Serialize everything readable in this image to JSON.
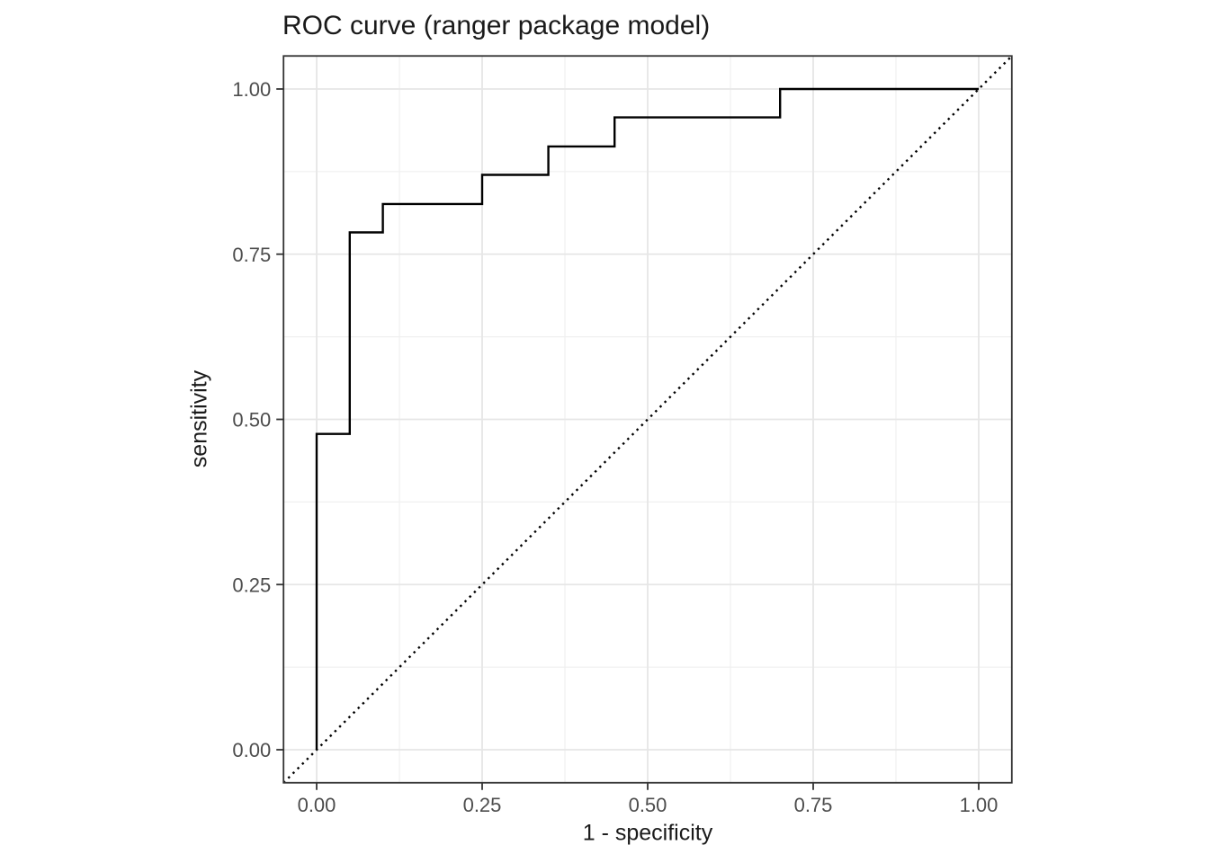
{
  "chart_data": {
    "type": "line",
    "title": "ROC curve (ranger package model)",
    "xlabel": "1 - specificity",
    "ylabel": "sensitivity",
    "xlim": [
      -0.05,
      1.05
    ],
    "ylim": [
      -0.05,
      1.05
    ],
    "grid": true,
    "legend": "none",
    "x_ticks": {
      "values": [
        0,
        0.25,
        0.5,
        0.75,
        1.0
      ],
      "labels": [
        "0.00",
        "0.25",
        "0.50",
        "0.75",
        "1.00"
      ]
    },
    "y_ticks": {
      "values": [
        0,
        0.25,
        0.5,
        0.75,
        1.0
      ],
      "labels": [
        "0.00",
        "0.25",
        "0.50",
        "0.75",
        "1.00"
      ]
    },
    "x_minor_gridlines": [
      0.125,
      0.375,
      0.625,
      0.875
    ],
    "y_minor_gridlines": [
      0.125,
      0.375,
      0.625,
      0.875
    ],
    "series": [
      {
        "name": "ROC curve",
        "type": "step",
        "color": "#000000",
        "line_style": "solid",
        "points": [
          [
            0.0,
            0.0
          ],
          [
            0.0,
            0.478
          ],
          [
            0.05,
            0.478
          ],
          [
            0.05,
            0.783
          ],
          [
            0.1,
            0.783
          ],
          [
            0.1,
            0.826
          ],
          [
            0.25,
            0.826
          ],
          [
            0.25,
            0.87
          ],
          [
            0.35,
            0.87
          ],
          [
            0.35,
            0.913
          ],
          [
            0.45,
            0.913
          ],
          [
            0.45,
            0.957
          ],
          [
            0.7,
            0.957
          ],
          [
            0.7,
            1.0
          ],
          [
            1.0,
            1.0
          ]
        ]
      },
      {
        "name": "chance diagonal",
        "type": "line",
        "color": "#000000",
        "line_style": "dotted",
        "points": [
          [
            -0.05,
            -0.05
          ],
          [
            1.05,
            1.05
          ]
        ]
      }
    ],
    "colors": {
      "figure_background": "#ffffff",
      "panel_background": "#ffffff",
      "panel_border": "#333333",
      "grid_major": "#e6e6e6",
      "grid_minor": "#f0f0f0",
      "tick_mark": "#333333",
      "tick_label": "#4d4d4d",
      "axis_title": "#1a1a1a",
      "title": "#1a1a1a"
    }
  }
}
